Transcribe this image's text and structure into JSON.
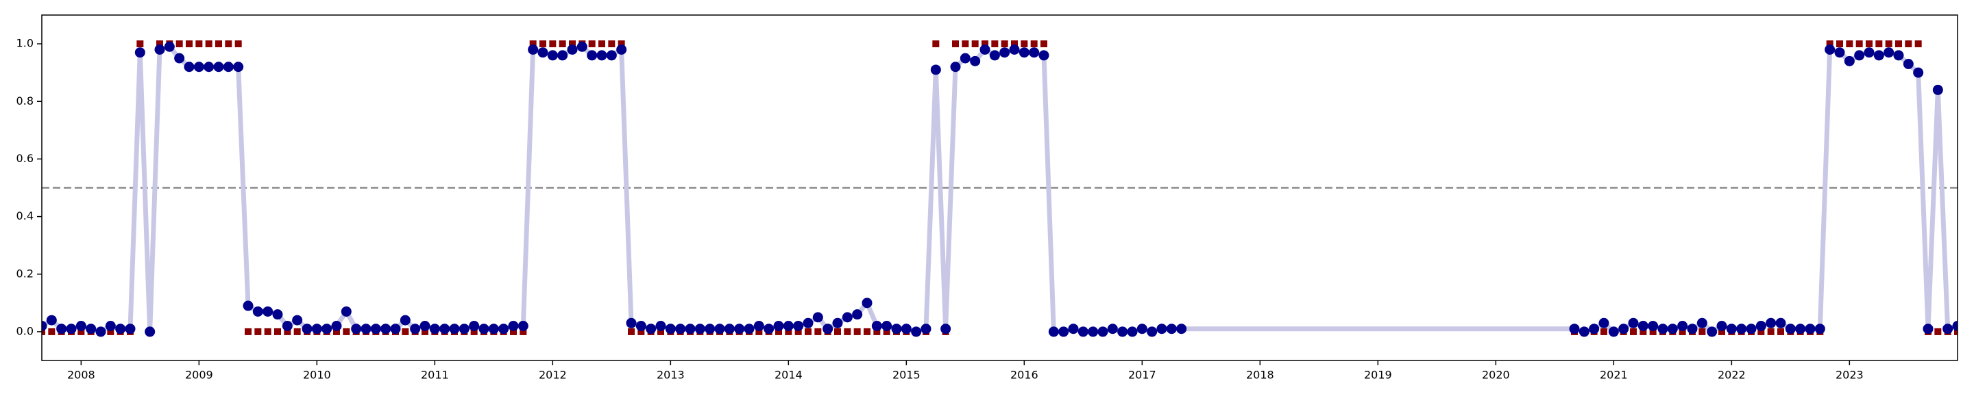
{
  "chart_data": {
    "type": "line",
    "x": [
      "2007-09",
      "2007-10",
      "2007-11",
      "2007-12",
      "2008-01",
      "2008-02",
      "2008-03",
      "2008-04",
      "2008-05",
      "2008-06",
      "2008-07",
      "2008-08",
      "2008-09",
      "2008-10",
      "2008-11",
      "2008-12",
      "2009-01",
      "2009-02",
      "2009-03",
      "2009-04",
      "2009-05",
      "2009-06",
      "2009-07",
      "2009-08",
      "2009-09",
      "2009-10",
      "2009-11",
      "2009-12",
      "2010-01",
      "2010-02",
      "2010-03",
      "2010-04",
      "2010-05",
      "2010-06",
      "2010-07",
      "2010-08",
      "2010-09",
      "2010-10",
      "2010-11",
      "2010-12",
      "2011-01",
      "2011-02",
      "2011-03",
      "2011-04",
      "2011-05",
      "2011-06",
      "2011-07",
      "2011-08",
      "2011-09",
      "2011-10",
      "2011-11",
      "2011-12",
      "2012-01",
      "2012-02",
      "2012-03",
      "2012-04",
      "2012-05",
      "2012-06",
      "2012-07",
      "2012-08",
      "2012-09",
      "2012-10",
      "2012-11",
      "2012-12",
      "2013-01",
      "2013-02",
      "2013-03",
      "2013-04",
      "2013-05",
      "2013-06",
      "2013-07",
      "2013-08",
      "2013-09",
      "2013-10",
      "2013-11",
      "2013-12",
      "2014-01",
      "2014-02",
      "2014-03",
      "2014-04",
      "2014-05",
      "2014-06",
      "2014-07",
      "2014-08",
      "2014-09",
      "2014-10",
      "2014-11",
      "2014-12",
      "2015-01",
      "2015-02",
      "2015-03",
      "2015-04",
      "2015-05",
      "2015-06",
      "2015-07",
      "2015-08",
      "2015-09",
      "2015-10",
      "2015-11",
      "2015-12",
      "2016-01",
      "2016-02",
      "2016-03",
      "2016-04",
      "2016-05",
      "2016-06",
      "2016-07",
      "2016-08",
      "2016-09",
      "2016-10",
      "2016-11",
      "2016-12",
      "2017-01",
      "2017-02",
      "2017-03",
      "2017-04",
      "2017-05",
      "2020-09",
      "2020-10",
      "2020-11",
      "2020-12",
      "2021-01",
      "2021-02",
      "2021-03",
      "2021-04",
      "2021-05",
      "2021-06",
      "2021-07",
      "2021-08",
      "2021-09",
      "2021-10",
      "2021-11",
      "2021-12",
      "2022-01",
      "2022-02",
      "2022-03",
      "2022-04",
      "2022-05",
      "2022-06",
      "2022-07",
      "2022-08",
      "2022-09",
      "2022-10",
      "2022-11",
      "2022-12",
      "2023-01",
      "2023-02",
      "2023-03",
      "2023-04",
      "2023-05",
      "2023-06",
      "2023-07",
      "2023-08",
      "2023-09",
      "2023-10",
      "2023-11",
      "2023-12"
    ],
    "series": [
      {
        "color": "#00008b",
        "line_color": "#c8c8e6",
        "marker": "circle",
        "values": [
          0.02,
          0.04,
          0.01,
          0.01,
          0.02,
          0.01,
          0.0,
          0.02,
          0.01,
          0.01,
          0.97,
          0.0,
          0.98,
          0.99,
          0.95,
          0.92,
          0.92,
          0.92,
          0.92,
          0.92,
          0.92,
          0.09,
          0.07,
          0.07,
          0.06,
          0.02,
          0.04,
          0.01,
          0.01,
          0.01,
          0.02,
          0.07,
          0.01,
          0.01,
          0.01,
          0.01,
          0.01,
          0.04,
          0.01,
          0.02,
          0.01,
          0.01,
          0.01,
          0.01,
          0.02,
          0.01,
          0.01,
          0.01,
          0.02,
          0.02,
          0.98,
          0.97,
          0.96,
          0.96,
          0.98,
          0.99,
          0.96,
          0.96,
          0.96,
          0.98,
          0.03,
          0.02,
          0.01,
          0.02,
          0.01,
          0.01,
          0.01,
          0.01,
          0.01,
          0.01,
          0.01,
          0.01,
          0.01,
          0.02,
          0.01,
          0.02,
          0.02,
          0.02,
          0.03,
          0.05,
          0.01,
          0.03,
          0.05,
          0.06,
          0.1,
          0.02,
          0.02,
          0.01,
          0.01,
          0.0,
          0.01,
          0.91,
          0.01,
          0.92,
          0.95,
          0.94,
          0.98,
          0.96,
          0.97,
          0.98,
          0.97,
          0.97,
          0.96,
          0.0,
          0.0,
          0.01,
          0.0,
          0.0,
          0.0,
          0.01,
          0.0,
          0.0,
          0.01,
          0.0,
          0.01,
          0.01,
          0.01,
          0.01,
          0.0,
          0.01,
          0.03,
          0.0,
          0.01,
          0.03,
          0.02,
          0.02,
          0.01,
          0.01,
          0.02,
          0.01,
          0.03,
          0.0,
          0.02,
          0.01,
          0.01,
          0.01,
          0.02,
          0.03,
          0.03,
          0.01,
          0.01,
          0.01,
          0.01,
          0.98,
          0.97,
          0.94,
          0.96,
          0.97,
          0.96,
          0.97,
          0.96,
          0.93,
          0.9,
          0.01,
          0.84,
          0.01,
          0.02
        ]
      },
      {
        "color": "#8b0000",
        "marker": "square",
        "values": [
          0,
          0,
          0,
          0,
          0,
          0,
          0,
          0,
          0,
          0,
          1,
          0,
          1,
          1,
          1,
          1,
          1,
          1,
          1,
          1,
          1,
          0,
          0,
          0,
          0,
          0,
          0,
          0,
          0,
          0,
          0,
          0,
          0,
          0,
          0,
          0,
          0,
          0,
          0,
          0,
          0,
          0,
          0,
          0,
          0,
          0,
          0,
          0,
          0,
          0,
          1,
          1,
          1,
          1,
          1,
          1,
          1,
          1,
          1,
          1,
          0,
          0,
          0,
          0,
          0,
          0,
          0,
          0,
          0,
          0,
          0,
          0,
          0,
          0,
          0,
          0,
          0,
          0,
          0,
          0,
          0,
          0,
          0,
          0,
          0,
          0,
          0,
          0,
          0,
          0,
          0,
          1,
          0,
          1,
          1,
          1,
          1,
          1,
          1,
          1,
          1,
          1,
          1,
          null,
          null,
          null,
          null,
          null,
          null,
          null,
          null,
          null,
          null,
          null,
          null,
          null,
          null,
          0,
          0,
          0,
          0,
          0,
          0,
          0,
          0,
          0,
          0,
          0,
          0,
          0,
          0,
          0,
          0,
          0,
          0,
          0,
          0,
          0,
          0,
          0,
          0,
          0,
          0,
          1,
          1,
          1,
          1,
          1,
          1,
          1,
          1,
          1,
          1,
          0,
          0,
          0,
          0
        ]
      }
    ],
    "threshold": 0.5,
    "xlim": [
      "2007-09",
      "2023-12"
    ],
    "xticks": [
      {
        "value": "2008-01",
        "label": "2008"
      },
      {
        "value": "2009-01",
        "label": "2009"
      },
      {
        "value": "2010-01",
        "label": "2010"
      },
      {
        "value": "2011-01",
        "label": "2011"
      },
      {
        "value": "2012-01",
        "label": "2012"
      },
      {
        "value": "2013-01",
        "label": "2013"
      },
      {
        "value": "2014-01",
        "label": "2014"
      },
      {
        "value": "2015-01",
        "label": "2015"
      },
      {
        "value": "2016-01",
        "label": "2016"
      },
      {
        "value": "2017-01",
        "label": "2017"
      },
      {
        "value": "2018-01",
        "label": "2018"
      },
      {
        "value": "2019-01",
        "label": "2019"
      },
      {
        "value": "2020-01",
        "label": "2020"
      },
      {
        "value": "2021-01",
        "label": "2021"
      },
      {
        "value": "2022-01",
        "label": "2022"
      },
      {
        "value": "2023-01",
        "label": "2023"
      }
    ],
    "ylim": [
      -0.1,
      1.1
    ],
    "yticks": [
      {
        "value": 0,
        "label": "0.0"
      },
      {
        "value": 0.2,
        "label": "0.2"
      },
      {
        "value": 0.4,
        "label": "0.4"
      },
      {
        "value": 0.6,
        "label": "0.6"
      },
      {
        "value": 0.8,
        "label": "0.8"
      },
      {
        "value": 1.0,
        "label": "1.0"
      }
    ],
    "grid": false
  }
}
